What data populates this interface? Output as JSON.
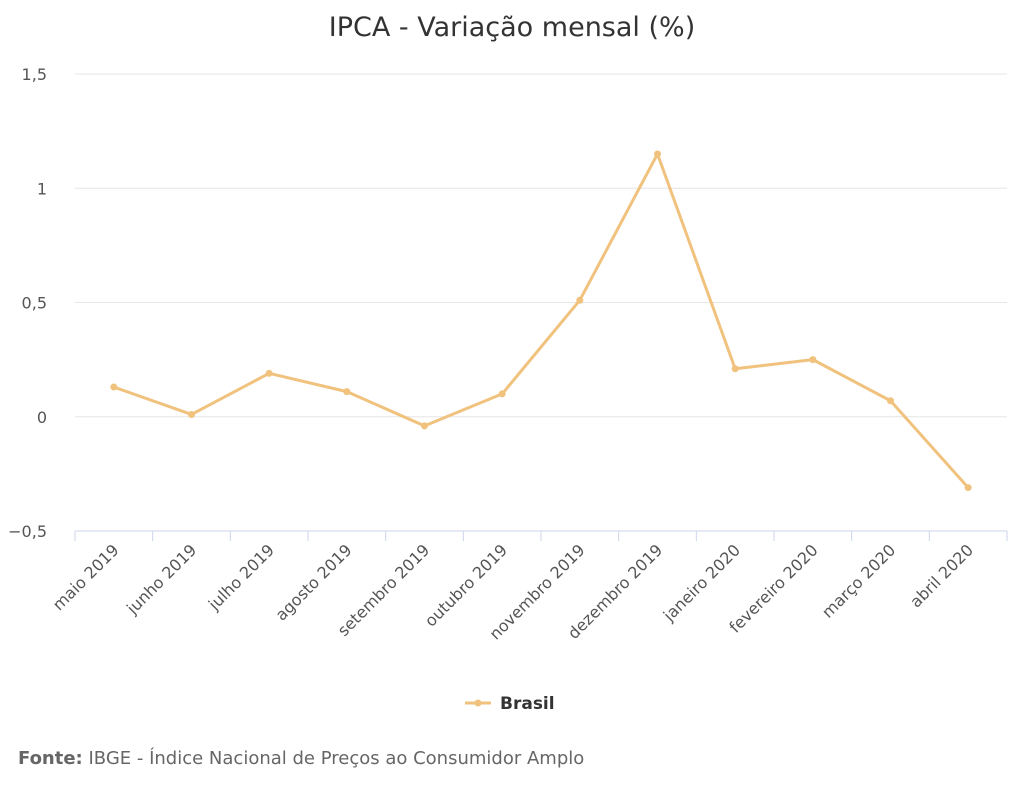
{
  "chart_data": {
    "type": "line",
    "title": "IPCA - Variação mensal (%)",
    "categories": [
      "maio 2019",
      "junho 2019",
      "julho 2019",
      "agosto 2019",
      "setembro 2019",
      "outubro 2019",
      "novembro 2019",
      "dezembro 2019",
      "janeiro 2020",
      "fevereiro 2020",
      "março 2020",
      "abril 2020"
    ],
    "series": [
      {
        "name": "Brasil",
        "color": "#f0c27d",
        "values": [
          0.13,
          0.01,
          0.19,
          0.11,
          -0.04,
          0.1,
          0.51,
          1.15,
          0.21,
          0.25,
          0.07,
          -0.31
        ]
      }
    ],
    "ylim": [
      -0.5,
      1.5
    ],
    "yticks": [
      -0.5,
      0,
      0.5,
      1,
      1.5
    ],
    "ytick_labels": [
      "−0,5",
      "0",
      "0,5",
      "1",
      "1,5"
    ],
    "grid": true,
    "legend": "bottom-center"
  },
  "source": {
    "label": "Fonte:",
    "text": " IBGE - Índice Nacional de Preços ao Consumidor Amplo"
  }
}
